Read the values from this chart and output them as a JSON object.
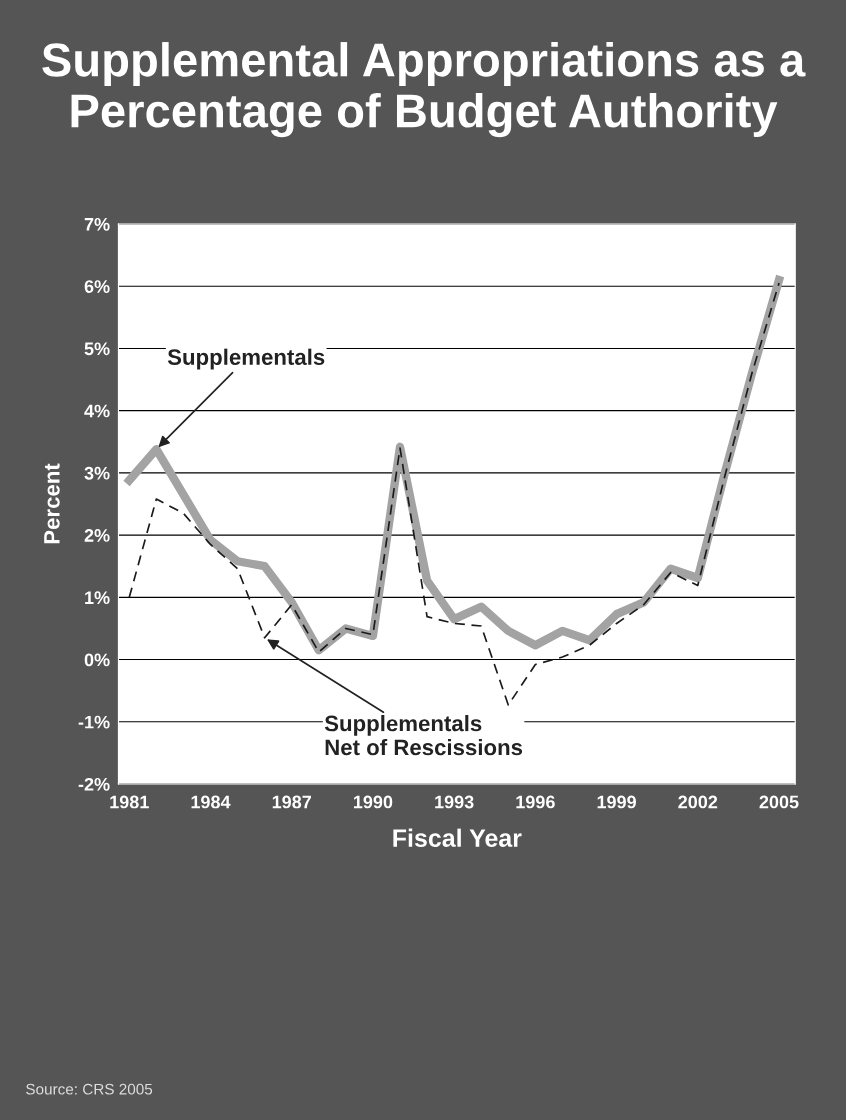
{
  "chart_data": {
    "type": "line",
    "title": "Supplemental Appropriations as a Percentage of Budget Authority",
    "xlabel": "Fiscal Year",
    "ylabel": "Percent",
    "x": [
      1981,
      1982,
      1983,
      1984,
      1985,
      1986,
      1987,
      1988,
      1989,
      1990,
      1991,
      1992,
      1993,
      1994,
      1995,
      1996,
      1997,
      1998,
      1999,
      2000,
      2001,
      2002,
      2003,
      2004,
      2005
    ],
    "series": [
      {
        "color": "#a3a3a3",
        "line_style": "solid",
        "values": [
          2.88,
          3.38,
          2.65,
          1.92,
          1.58,
          1.5,
          0.92,
          0.15,
          0.5,
          0.38,
          3.42,
          1.27,
          0.65,
          0.85,
          0.46,
          0.23,
          0.46,
          0.31,
          0.73,
          0.92,
          1.46,
          1.31,
          3.0,
          4.6,
          6.1
        ]
      },
      {
        "color": "#1a1a1a",
        "line_style": "dashed",
        "values": [
          1.0,
          2.58,
          2.35,
          1.85,
          1.46,
          0.35,
          0.88,
          0.12,
          0.5,
          0.4,
          3.4,
          0.69,
          0.58,
          0.54,
          -0.73,
          -0.08,
          0.04,
          0.23,
          0.58,
          0.88,
          1.4,
          1.19,
          2.95,
          4.6,
          6.05
        ]
      }
    ],
    "xlim": [
      1980.6,
      2005.6
    ],
    "xticks": [
      1981,
      1984,
      1987,
      1990,
      1993,
      1996,
      1999,
      2002,
      2005
    ],
    "ylim": [
      -2,
      7
    ],
    "yticks": [
      {
        "value": -2,
        "label": "-2%"
      },
      {
        "value": -1,
        "label": "-1%"
      },
      {
        "value": 0,
        "label": "0%"
      },
      {
        "value": 1,
        "label": "1%"
      },
      {
        "value": 2,
        "label": "2%"
      },
      {
        "value": 3,
        "label": "3%"
      },
      {
        "value": 4,
        "label": "4%"
      },
      {
        "value": 5,
        "label": "5%"
      },
      {
        "value": 6,
        "label": "6%"
      },
      {
        "value": 7,
        "label": "7%"
      }
    ],
    "grid": "y",
    "legend": false,
    "marker": "none",
    "annotations": [
      {
        "text": "Supplementals",
        "x": 1982,
        "y": 3.38
      },
      {
        "text": "Supplementals\nNet of Rescissions",
        "x": 1986,
        "y": 0.35
      },
      "Source: CRS 2005"
    ]
  }
}
